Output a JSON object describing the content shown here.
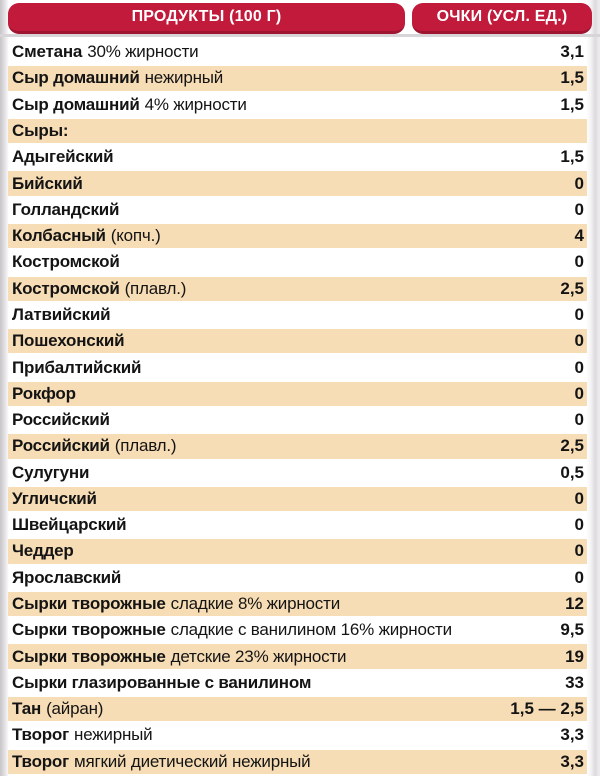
{
  "header": {
    "left_pill": "ПРОДУКТЫ (100 Г)",
    "right_pill": "ОЧКИ (УСЛ. ЕД.)"
  },
  "colors": {
    "pill_red": "#c21a3a",
    "pill_red_dark": "#9d1530",
    "row_shaded": "#f7ddb5",
    "text": "#141414"
  },
  "table": {
    "rows": [
      {
        "name": "Сметана",
        "desc": "30% жирности",
        "value": "3,1",
        "shaded": false
      },
      {
        "name": "Сыр домашний",
        "desc": "нежирный",
        "value": "1,5",
        "shaded": true
      },
      {
        "name": "Сыр домашний",
        "desc": "4% жирности",
        "value": "1,5",
        "shaded": false
      },
      {
        "name": "Сыры:",
        "desc": "",
        "value": "",
        "shaded": true
      },
      {
        "name": "Адыгейский",
        "desc": "",
        "value": "1,5",
        "shaded": false
      },
      {
        "name": "Бийский",
        "desc": "",
        "value": "0",
        "shaded": true
      },
      {
        "name": "Голландский",
        "desc": "",
        "value": "0",
        "shaded": false
      },
      {
        "name": "Колбасный",
        "desc": "(копч.)",
        "value": "4",
        "shaded": true
      },
      {
        "name": "Костромской",
        "desc": "",
        "value": "0",
        "shaded": false
      },
      {
        "name": "Костромской",
        "desc": "(плавл.)",
        "value": "2,5",
        "shaded": true
      },
      {
        "name": "Латвийский",
        "desc": "",
        "value": "0",
        "shaded": false
      },
      {
        "name": "Пошехонский",
        "desc": "",
        "value": "0",
        "shaded": true
      },
      {
        "name": "Прибалтийский",
        "desc": "",
        "value": "0",
        "shaded": false
      },
      {
        "name": "Рокфор",
        "desc": "",
        "value": "0",
        "shaded": true
      },
      {
        "name": "Российский",
        "desc": "",
        "value": "0",
        "shaded": false
      },
      {
        "name": "Российский",
        "desc": "(плавл.)",
        "value": "2,5",
        "shaded": true
      },
      {
        "name": "Сулугуни",
        "desc": "",
        "value": "0,5",
        "shaded": false
      },
      {
        "name": "Угличский",
        "desc": "",
        "value": "0",
        "shaded": true
      },
      {
        "name": "Швейцарский",
        "desc": "",
        "value": "0",
        "shaded": false
      },
      {
        "name": "Чеддер",
        "desc": "",
        "value": "0",
        "shaded": true
      },
      {
        "name": "Ярославский",
        "desc": "",
        "value": "0",
        "shaded": false
      },
      {
        "name": "Сырки творожные",
        "desc": "сладкие 8% жирности",
        "value": "12",
        "shaded": true
      },
      {
        "name": "Сырки творожные",
        "desc": "сладкие с ванилином 16% жирности",
        "value": "9,5",
        "shaded": false
      },
      {
        "name": "Сырки творожные",
        "desc": "детские 23% жирности",
        "value": "19",
        "shaded": true
      },
      {
        "name": "Сырки глазированные с ванилином",
        "desc": "",
        "value": "33",
        "shaded": false
      },
      {
        "name": "Тан",
        "desc": "(айран)",
        "value": "1,5 — 2,5",
        "shaded": true
      },
      {
        "name": "Творог",
        "desc": "нежирный",
        "value": "3,3",
        "shaded": false
      },
      {
        "name": "Творог",
        "desc": "мягкий диетический нежирный",
        "value": "3,3",
        "shaded": true
      }
    ]
  }
}
